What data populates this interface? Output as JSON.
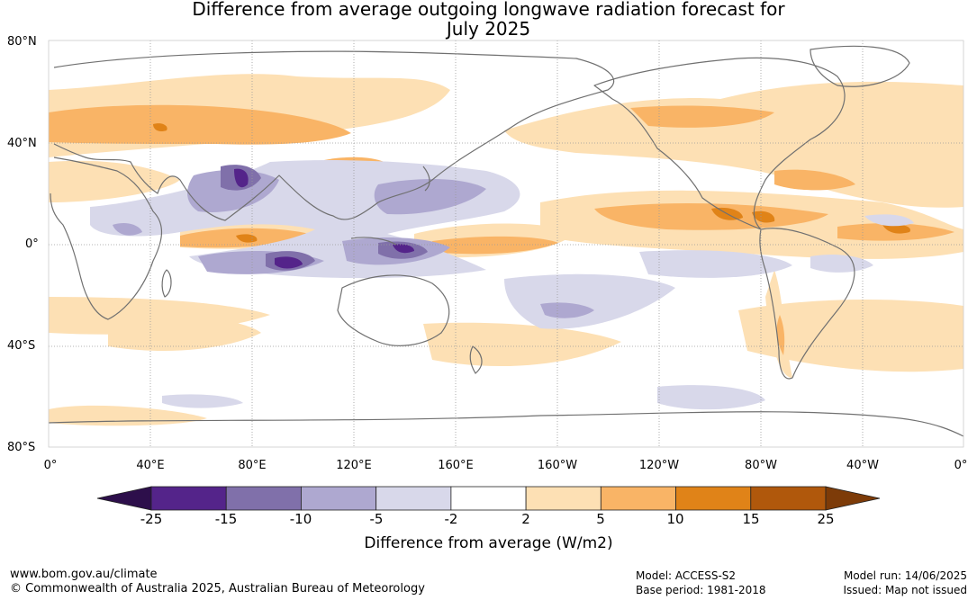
{
  "title": {
    "line1": "Difference from average outgoing longwave radiation forecast for",
    "line2": "July 2025"
  },
  "map": {
    "lat_labels": [
      "80°N",
      "40°N",
      "0°",
      "40°S",
      "80°S"
    ],
    "lon_labels": [
      "0°",
      "40°E",
      "80°E",
      "120°E",
      "160°E",
      "160°W",
      "120°W",
      "80°W",
      "40°W",
      "0°"
    ],
    "colors": {
      "ocean": "#ffffff",
      "coast": "#707070",
      "grid": "#9a9a9a"
    }
  },
  "colorbar": {
    "ticks": [
      "-25",
      "-15",
      "-10",
      "-5",
      "-2",
      "2",
      "5",
      "10",
      "15",
      "25"
    ],
    "colors": [
      "#2d0f4b",
      "#54248a",
      "#8070aa",
      "#aea8d0",
      "#d8d8ea",
      "#ffffff",
      "#fde0b4",
      "#f9b466",
      "#e08318",
      "#b0580c",
      "#7d3b08"
    ],
    "label": "Difference from average (W/m2)"
  },
  "footer": {
    "website": "www.bom.gov.au/climate",
    "copyright": "© Commonwealth of Australia 2025, Australian Bureau of Meteorology",
    "model": "Model: ACCESS-S2",
    "base_period": "Base period: 1981-2018",
    "model_run": "Model run: 14/06/2025",
    "issued": "Issued: Map not issued"
  }
}
